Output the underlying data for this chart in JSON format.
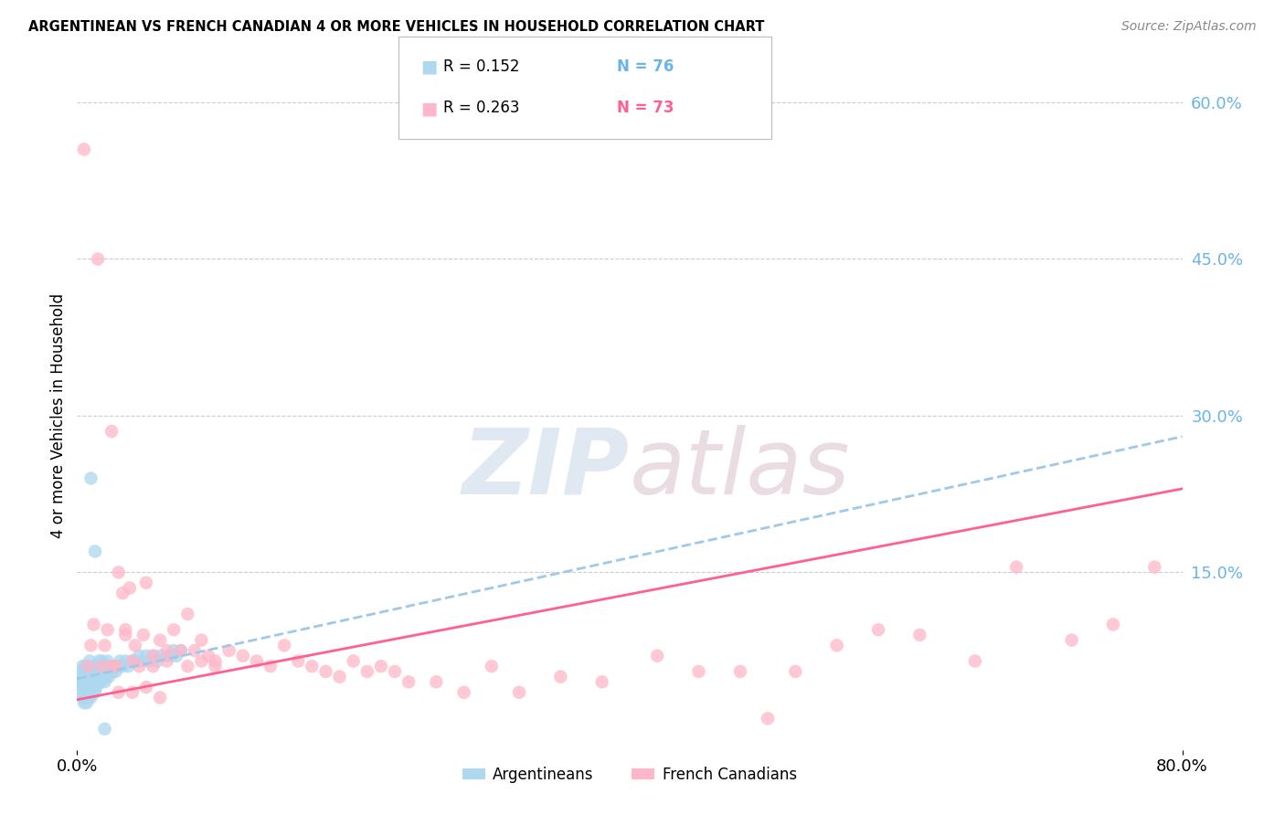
{
  "title": "ARGENTINEAN VS FRENCH CANADIAN 4 OR MORE VEHICLES IN HOUSEHOLD CORRELATION CHART",
  "source": "Source: ZipAtlas.com",
  "ylabel": "4 or more Vehicles in Household",
  "xlim": [
    0.0,
    0.8
  ],
  "ylim": [
    -0.02,
    0.62
  ],
  "grid_color": "#cccccc",
  "background_color": "#ffffff",
  "argentinean_color": "#add8f0",
  "french_canadian_color": "#ffb6c8",
  "argentinean_line_color": "#a0c8e8",
  "french_canadian_line_color": "#ff6090",
  "r_argentinean": 0.152,
  "n_argentinean": 76,
  "r_french_canadian": 0.263,
  "n_french_canadian": 73,
  "legend_label_1": "Argentineans",
  "legend_label_2": "French Canadians",
  "watermark_zip": "ZIP",
  "watermark_atlas": "atlas",
  "argentinean_x": [
    0.001,
    0.002,
    0.002,
    0.003,
    0.003,
    0.004,
    0.004,
    0.004,
    0.005,
    0.005,
    0.005,
    0.006,
    0.006,
    0.006,
    0.007,
    0.007,
    0.007,
    0.008,
    0.008,
    0.008,
    0.009,
    0.009,
    0.009,
    0.01,
    0.01,
    0.01,
    0.011,
    0.011,
    0.012,
    0.012,
    0.013,
    0.013,
    0.014,
    0.014,
    0.015,
    0.015,
    0.016,
    0.016,
    0.017,
    0.017,
    0.018,
    0.018,
    0.019,
    0.02,
    0.02,
    0.021,
    0.022,
    0.022,
    0.023,
    0.024,
    0.025,
    0.026,
    0.027,
    0.028,
    0.03,
    0.031,
    0.033,
    0.035,
    0.037,
    0.04,
    0.042,
    0.045,
    0.047,
    0.05,
    0.052,
    0.055,
    0.058,
    0.06,
    0.065,
    0.068,
    0.07,
    0.072,
    0.075,
    0.013,
    0.01,
    0.02
  ],
  "argentinean_y": [
    0.045,
    0.04,
    0.055,
    0.035,
    0.05,
    0.03,
    0.045,
    0.06,
    0.025,
    0.04,
    0.055,
    0.03,
    0.045,
    0.06,
    0.025,
    0.04,
    0.055,
    0.03,
    0.045,
    0.06,
    0.035,
    0.05,
    0.065,
    0.03,
    0.045,
    0.06,
    0.035,
    0.05,
    0.04,
    0.055,
    0.035,
    0.05,
    0.04,
    0.055,
    0.045,
    0.06,
    0.05,
    0.065,
    0.045,
    0.06,
    0.05,
    0.065,
    0.055,
    0.045,
    0.06,
    0.05,
    0.055,
    0.065,
    0.05,
    0.055,
    0.06,
    0.055,
    0.06,
    0.055,
    0.06,
    0.065,
    0.06,
    0.065,
    0.06,
    0.065,
    0.065,
    0.07,
    0.065,
    0.07,
    0.065,
    0.07,
    0.065,
    0.07,
    0.07,
    0.07,
    0.075,
    0.07,
    0.075,
    0.17,
    0.24,
    0.0
  ],
  "french_canadian_x": [
    0.005,
    0.008,
    0.01,
    0.012,
    0.015,
    0.018,
    0.02,
    0.022,
    0.025,
    0.028,
    0.03,
    0.033,
    0.035,
    0.038,
    0.04,
    0.042,
    0.045,
    0.048,
    0.05,
    0.055,
    0.06,
    0.065,
    0.07,
    0.075,
    0.08,
    0.085,
    0.09,
    0.095,
    0.1,
    0.11,
    0.12,
    0.13,
    0.14,
    0.15,
    0.16,
    0.17,
    0.18,
    0.19,
    0.2,
    0.21,
    0.22,
    0.23,
    0.24,
    0.26,
    0.28,
    0.3,
    0.32,
    0.35,
    0.38,
    0.42,
    0.45,
    0.48,
    0.5,
    0.52,
    0.55,
    0.58,
    0.61,
    0.65,
    0.68,
    0.72,
    0.75,
    0.78,
    0.025,
    0.03,
    0.035,
    0.04,
    0.05,
    0.055,
    0.06,
    0.065,
    0.08,
    0.09,
    0.1
  ],
  "french_canadian_y": [
    0.555,
    0.06,
    0.08,
    0.1,
    0.45,
    0.06,
    0.08,
    0.095,
    0.285,
    0.06,
    0.15,
    0.13,
    0.095,
    0.135,
    0.065,
    0.08,
    0.06,
    0.09,
    0.14,
    0.06,
    0.085,
    0.065,
    0.095,
    0.075,
    0.06,
    0.075,
    0.085,
    0.07,
    0.065,
    0.075,
    0.07,
    0.065,
    0.06,
    0.08,
    0.065,
    0.06,
    0.055,
    0.05,
    0.065,
    0.055,
    0.06,
    0.055,
    0.045,
    0.045,
    0.035,
    0.06,
    0.035,
    0.05,
    0.045,
    0.07,
    0.055,
    0.055,
    0.01,
    0.055,
    0.08,
    0.095,
    0.09,
    0.065,
    0.155,
    0.085,
    0.1,
    0.155,
    0.06,
    0.035,
    0.09,
    0.035,
    0.04,
    0.07,
    0.03,
    0.075,
    0.11,
    0.065,
    0.06
  ],
  "arg_trendline": [
    0.002,
    0.049,
    0.055
  ],
  "frc_trendline_start_y": 0.028,
  "frc_trendline_end_y": 0.23
}
